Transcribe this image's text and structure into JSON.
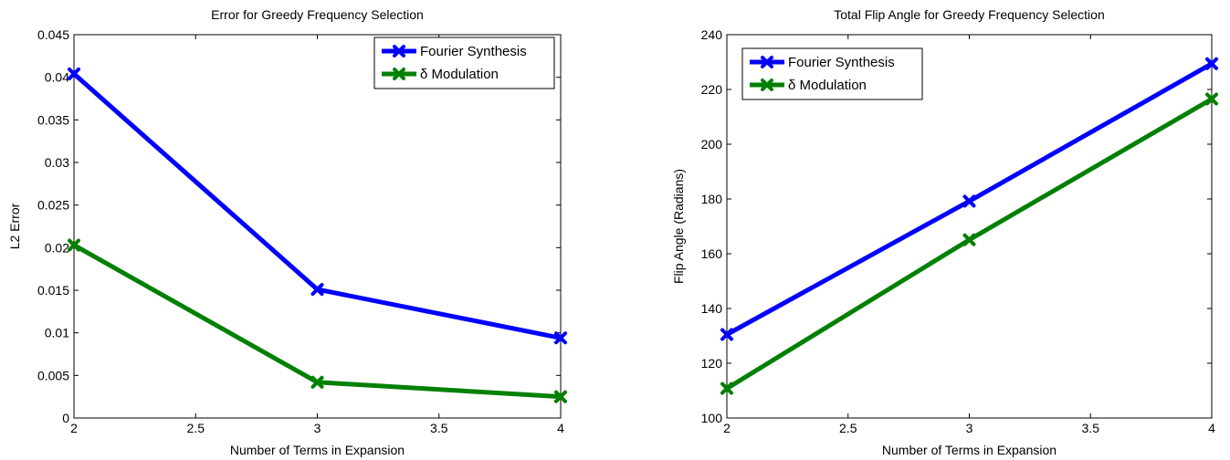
{
  "colors": {
    "fourier": "#0000ff",
    "delta": "#008000",
    "axis": "#000000"
  },
  "chart_data": [
    {
      "type": "line",
      "title": "Error for Greedy Frequency Selection",
      "xlabel": "Number of Terms in Expansion",
      "ylabel": "L2 Error",
      "xlim": [
        2,
        4
      ],
      "ylim": [
        0,
        0.045
      ],
      "xticks": [
        2,
        2.5,
        3,
        3.5,
        4
      ],
      "xtick_labels": [
        "2",
        "2.5",
        "3",
        "3.5",
        "4"
      ],
      "yticks": [
        0,
        0.005,
        0.01,
        0.015,
        0.02,
        0.025,
        0.03,
        0.035,
        0.04,
        0.045
      ],
      "ytick_labels": [
        "0",
        "0.005",
        "0.01",
        "0.015",
        "0.02",
        "0.025",
        "0.03",
        "0.035",
        "0.04",
        "0.045"
      ],
      "grid": false,
      "legend_position": "top-right",
      "marker": "x",
      "x": [
        2,
        3,
        4
      ],
      "series": [
        {
          "name": "Fourier Synthesis",
          "values": [
            0.0404,
            0.0151,
            0.0094
          ],
          "color": "#0000ff"
        },
        {
          "name": "δ Modulation",
          "values": [
            0.0203,
            0.0042,
            0.0025
          ],
          "color": "#008000"
        }
      ]
    },
    {
      "type": "line",
      "title": "Total Flip Angle for Greedy Frequency Selection",
      "xlabel": "Number of Terms in Expansion",
      "ylabel": "Flip Angle (Radians)",
      "xlim": [
        2,
        4
      ],
      "ylim": [
        100,
        240
      ],
      "xticks": [
        2,
        2.5,
        3,
        3.5,
        4
      ],
      "xtick_labels": [
        "2",
        "2.5",
        "3",
        "3.5",
        "4"
      ],
      "yticks": [
        100,
        120,
        140,
        160,
        180,
        200,
        220,
        240
      ],
      "ytick_labels": [
        "100",
        "120",
        "140",
        "160",
        "180",
        "200",
        "220",
        "240"
      ],
      "grid": false,
      "legend_position": "top-left",
      "marker": "x",
      "x": [
        2,
        3,
        4
      ],
      "series": [
        {
          "name": "Fourier Synthesis",
          "values": [
            130.5,
            179.2,
            229.4
          ],
          "color": "#0000ff"
        },
        {
          "name": "δ Modulation",
          "values": [
            110.8,
            165.1,
            216.5
          ],
          "color": "#008000"
        }
      ]
    }
  ]
}
